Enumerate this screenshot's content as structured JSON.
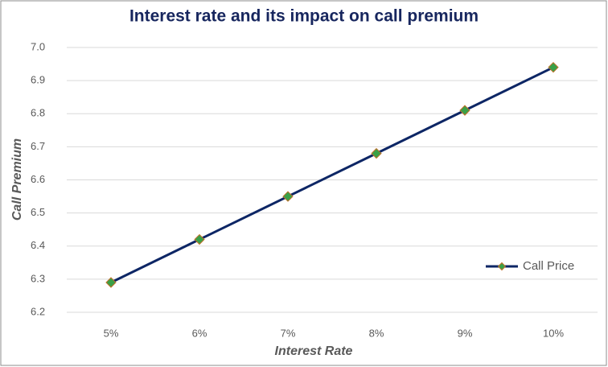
{
  "chart_data": {
    "type": "line",
    "title": "Interest rate and its impact on call premium",
    "x_label": "Interest Rate",
    "y_label": "Call Premium",
    "categories": [
      "5%",
      "6%",
      "7%",
      "8%",
      "9%",
      "10%"
    ],
    "series": [
      {
        "name": "Call Price",
        "color": "#0d2665",
        "marker_color": "#3aa047",
        "marker_edge": "#c0702a",
        "values": [
          6.29,
          6.42,
          6.55,
          6.68,
          6.81,
          6.94
        ]
      }
    ],
    "ylim": [
      6.2,
      7.0
    ],
    "yticks": [
      6.2,
      6.3,
      6.4,
      6.5,
      6.6,
      6.7,
      6.8,
      6.9,
      {
        "value": 7.0,
        "label": "7.0"
      }
    ],
    "grid": true,
    "legend": "right"
  }
}
